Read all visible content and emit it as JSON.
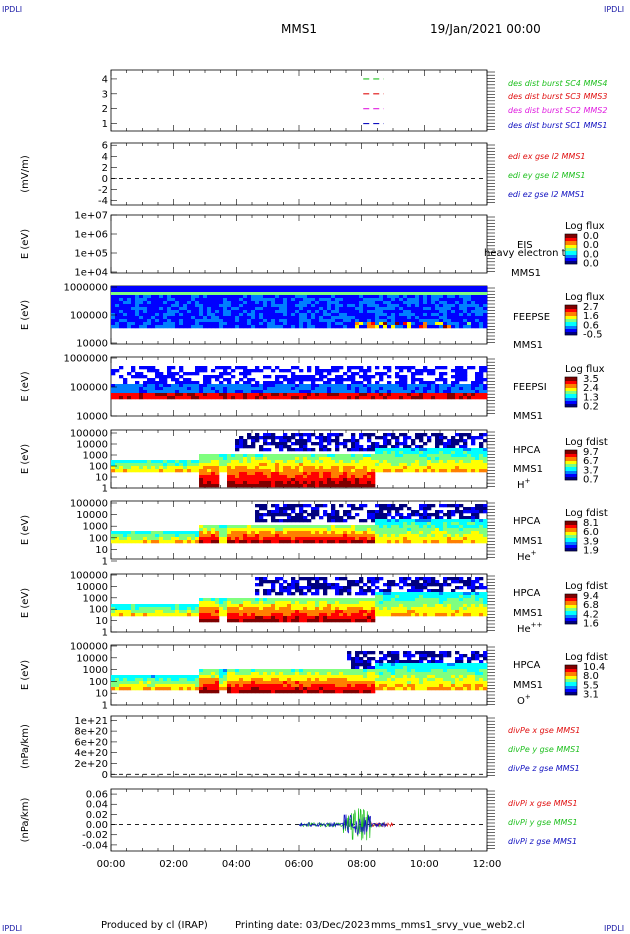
{
  "corners": {
    "tl": "IPDLI",
    "tr": "IPDLI",
    "bl": "IPDLI",
    "br": "IPDLI"
  },
  "header": {
    "spacecraft": "MMS1",
    "date": "19/Jan/2021 00:00"
  },
  "footer": {
    "producer": "Produced by cl (IRAP)",
    "printing": "Printing date: 03/Dec/2023",
    "script": "mms_mms1_srvy_vue_web2.cl"
  },
  "colors": {
    "blue": "#1010c0",
    "magenta": "#e020e0",
    "red": "#e01010",
    "green": "#20c020",
    "jet": [
      "#00007f",
      "#0000ff",
      "#007fff",
      "#00ffff",
      "#7fff7f",
      "#ffff00",
      "#ff7f00",
      "#ff0000",
      "#7f0000"
    ]
  },
  "chart_data": [
    {
      "type": "line",
      "panel": "burst-intervals",
      "yticks": [
        "1",
        "2",
        "3",
        "4"
      ],
      "ylim": [
        0.5,
        4.6
      ],
      "series": [
        {
          "name": "des dist burst SC1 MMS1",
          "color": "blue",
          "y": 1,
          "x": [
            8.05,
            8.7
          ]
        },
        {
          "name": "des dist burst SC2 MMS2",
          "color": "magenta",
          "y": 2,
          "x": [
            8.05,
            8.7
          ]
        },
        {
          "name": "des dist burst SC3 MMS3",
          "color": "red",
          "y": 3,
          "x": [
            8.05,
            8.7
          ]
        },
        {
          "name": "des dist burst SC4 MMS4",
          "color": "green",
          "y": 4,
          "x": [
            8.05,
            8.7
          ]
        }
      ]
    },
    {
      "type": "line",
      "panel": "edi-e-field",
      "ylabel": "(mV/m)",
      "yticks": [
        "-4",
        "-2",
        "0",
        "2",
        "4",
        "6"
      ],
      "ylim": [
        -4.8,
        6.4
      ],
      "zero_line": true,
      "series": [
        {
          "name": "edi ex gse l2 MMS1",
          "color": "red"
        },
        {
          "name": "edi ey gse l2 MMS1",
          "color": "green"
        },
        {
          "name": "edi ez gse l2 MMS1",
          "color": "blue"
        }
      ]
    },
    {
      "type": "heatmap",
      "panel": "eis",
      "ylabel": "E (eV)",
      "yticks": [
        "1e+04",
        "1e+05",
        "1e+06",
        "1e+07"
      ],
      "instrument": "EIS",
      "spacecraft": "MMS1",
      "overlay_text": "heavy electron to",
      "colorbar": {
        "title": "Log flux",
        "ticks": [
          "0.0",
          "0.0",
          "0.0",
          "0.0"
        ]
      },
      "empty": true
    },
    {
      "type": "heatmap",
      "panel": "feeps-electron",
      "ylabel": "E (eV)",
      "yticks": [
        "10000",
        "100000",
        "1000000"
      ],
      "instrument": "FEEPSE",
      "spacecraft": "MMS1",
      "colorbar": {
        "title": "Log flux",
        "ticks": [
          "2.7",
          "1.6",
          "0.6",
          "-0.5"
        ]
      }
    },
    {
      "type": "heatmap",
      "panel": "feeps-ion",
      "ylabel": "E (eV)",
      "yticks": [
        "10000",
        "100000",
        "1000000"
      ],
      "instrument": "FEEPSI",
      "spacecraft": "MMS1",
      "colorbar": {
        "title": "Log flux",
        "ticks": [
          "3.5",
          "2.4",
          "1.3",
          "0.2"
        ]
      }
    },
    {
      "type": "heatmap",
      "panel": "hpca-h",
      "ylabel": "E (eV)",
      "yticks": [
        "1",
        "10",
        "100",
        "1000",
        "10000",
        "100000"
      ],
      "instrument": "HPCA",
      "spacecraft": "MMS1",
      "species": "H",
      "charge": "+",
      "colorbar": {
        "title": "Log fdist",
        "ticks": [
          "9.7",
          "6.7",
          "3.7",
          "0.7"
        ]
      }
    },
    {
      "type": "heatmap",
      "panel": "hpca-he",
      "ylabel": "E (eV)",
      "yticks": [
        "1",
        "10",
        "100",
        "1000",
        "10000",
        "100000"
      ],
      "instrument": "HPCA",
      "spacecraft": "MMS1",
      "species": "He",
      "charge": "+",
      "colorbar": {
        "title": "Log fdist",
        "ticks": [
          "8.1",
          "6.0",
          "3.9",
          "1.9"
        ]
      }
    },
    {
      "type": "heatmap",
      "panel": "hpca-he2",
      "ylabel": "E (eV)",
      "yticks": [
        "1",
        "10",
        "100",
        "1000",
        "10000",
        "100000"
      ],
      "instrument": "HPCA",
      "spacecraft": "MMS1",
      "species": "He",
      "charge": "++",
      "colorbar": {
        "title": "Log fdist",
        "ticks": [
          "9.4",
          "6.8",
          "4.2",
          "1.6"
        ]
      }
    },
    {
      "type": "heatmap",
      "panel": "hpca-o",
      "ylabel": "E (eV)",
      "yticks": [
        "1",
        "10",
        "100",
        "1000",
        "10000",
        "100000"
      ],
      "instrument": "HPCA",
      "spacecraft": "MMS1",
      "species": "O",
      "charge": "+",
      "colorbar": {
        "title": "Log fdist",
        "ticks": [
          "10.4",
          "8.0",
          "5.5",
          "3.1"
        ]
      }
    },
    {
      "type": "line",
      "panel": "divpe",
      "ylabel": "(nPa/km)",
      "yticks": [
        "0",
        "2e+20",
        "4e+20",
        "6e+20",
        "8e+20",
        "1e+21"
      ],
      "ylim": [
        -0.05,
        1.08
      ],
      "zero_line": true,
      "series": [
        {
          "name": "divPe x gse MMS1",
          "color": "red"
        },
        {
          "name": "divPe y gse MMS1",
          "color": "green"
        },
        {
          "name": "divPe z gse MMS1",
          "color": "blue"
        }
      ]
    },
    {
      "type": "line",
      "panel": "divpi",
      "ylabel": "(nPa/km)",
      "yticks": [
        "-0.04",
        "-0.02",
        "0.00",
        "0.02",
        "0.04",
        "0.06"
      ],
      "ylim": [
        -0.052,
        0.07
      ],
      "zero_line": true,
      "series": [
        {
          "name": "divPi x gse MMS1",
          "color": "red"
        },
        {
          "name": "divPi y gse MMS1",
          "color": "green"
        },
        {
          "name": "divPi z gse MMS1",
          "color": "blue"
        }
      ]
    }
  ],
  "xaxis": {
    "ticks": [
      "00:00",
      "02:00",
      "04:00",
      "06:00",
      "08:00",
      "10:00",
      "12:00"
    ],
    "range_hours": [
      0,
      12
    ]
  }
}
